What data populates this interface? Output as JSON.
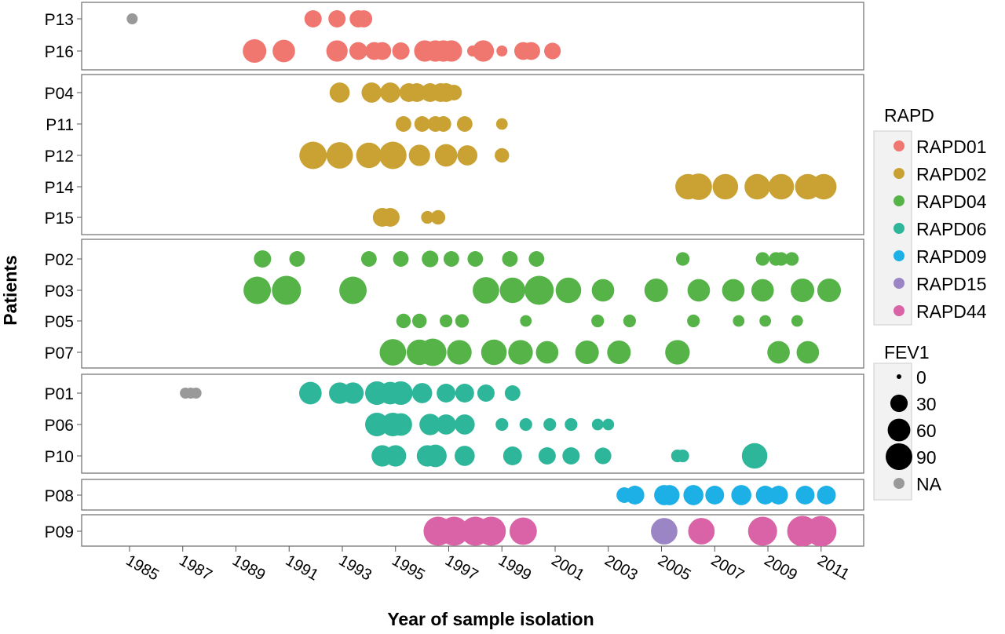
{
  "chart_data": {
    "type": "scatter",
    "xlabel": "Year of sample isolation",
    "ylabel": "Patients",
    "xlim": [
      1983.2,
      2012.6
    ],
    "x_ticks": [
      "1985",
      "1987",
      "1989",
      "1991",
      "1993",
      "1995",
      "1997",
      "1999",
      "2001",
      "2003",
      "2005",
      "2007",
      "2009",
      "2011"
    ],
    "grid": false,
    "panels": [
      {
        "name": "RAPD01",
        "rows": [
          "P13",
          "P16"
        ]
      },
      {
        "name": "RAPD02",
        "rows": [
          "P04",
          "P11",
          "P12",
          "P14",
          "P15"
        ]
      },
      {
        "name": "RAPD04",
        "rows": [
          "P02",
          "P03",
          "P05",
          "P07"
        ]
      },
      {
        "name": "RAPD06",
        "rows": [
          "P01",
          "P06",
          "P10"
        ]
      },
      {
        "name": "RAPD09",
        "rows": [
          "P08"
        ]
      },
      {
        "name": "RAPD44",
        "rows": [
          "P09"
        ]
      }
    ],
    "legend_color": {
      "title": "RAPD",
      "entries": [
        {
          "label": "RAPD01",
          "color": "#F07770"
        },
        {
          "label": "RAPD02",
          "color": "#C9A233"
        },
        {
          "label": "RAPD04",
          "color": "#55B348"
        },
        {
          "label": "RAPD06",
          "color": "#2DB69A"
        },
        {
          "label": "RAPD09",
          "color": "#1CB0E6"
        },
        {
          "label": "RAPD15",
          "color": "#9B85C4"
        },
        {
          "label": "RAPD44",
          "color": "#DA63A7"
        }
      ]
    },
    "legend_size": {
      "title": "FEV1",
      "entries": [
        {
          "label": "0",
          "value": 0
        },
        {
          "label": "30",
          "value": 30
        },
        {
          "label": "60",
          "value": 60
        },
        {
          "label": "90",
          "value": 90
        },
        {
          "label": "NA",
          "value": null
        }
      ]
    },
    "na_color": "#999999",
    "series": [
      {
        "patient": "P13",
        "color": "RAPD01",
        "points": [
          {
            "x": 1985.1,
            "fev1": null
          },
          {
            "x": 1991.9,
            "fev1": 20
          },
          {
            "x": 1992.8,
            "fev1": 20
          },
          {
            "x": 1993.6,
            "fev1": 20
          },
          {
            "x": 1993.8,
            "fev1": 20
          }
        ]
      },
      {
        "patient": "P16",
        "color": "RAPD01",
        "points": [
          {
            "x": 1989.7,
            "fev1": 45
          },
          {
            "x": 1990.8,
            "fev1": 40
          },
          {
            "x": 1992.8,
            "fev1": 35
          },
          {
            "x": 1993.6,
            "fev1": 22
          },
          {
            "x": 1994.2,
            "fev1": 22
          },
          {
            "x": 1994.5,
            "fev1": 22
          },
          {
            "x": 1995.2,
            "fev1": 20
          },
          {
            "x": 1996.1,
            "fev1": 35
          },
          {
            "x": 1996.5,
            "fev1": 35
          },
          {
            "x": 1996.8,
            "fev1": 35
          },
          {
            "x": 1997.1,
            "fev1": 35
          },
          {
            "x": 1997.9,
            "fev1": 5
          },
          {
            "x": 1998.3,
            "fev1": 35
          },
          {
            "x": 1999.0,
            "fev1": 5
          },
          {
            "x": 1999.8,
            "fev1": 22
          },
          {
            "x": 2000.1,
            "fev1": 22
          },
          {
            "x": 2000.9,
            "fev1": 18
          }
        ]
      },
      {
        "patient": "P04",
        "color": "RAPD02",
        "points": [
          {
            "x": 1992.9,
            "fev1": 30
          },
          {
            "x": 1994.1,
            "fev1": 30
          },
          {
            "x": 1994.8,
            "fev1": 30
          },
          {
            "x": 1995.5,
            "fev1": 25
          },
          {
            "x": 1995.8,
            "fev1": 25
          },
          {
            "x": 1996.3,
            "fev1": 25
          },
          {
            "x": 1996.7,
            "fev1": 25
          },
          {
            "x": 1996.9,
            "fev1": 25
          },
          {
            "x": 1997.2,
            "fev1": 15
          }
        ]
      },
      {
        "patient": "P11",
        "color": "RAPD02",
        "points": [
          {
            "x": 1995.3,
            "fev1": 15
          },
          {
            "x": 1996.0,
            "fev1": 15
          },
          {
            "x": 1996.5,
            "fev1": 15
          },
          {
            "x": 1996.8,
            "fev1": 15
          },
          {
            "x": 1997.6,
            "fev1": 15
          },
          {
            "x": 1999.0,
            "fev1": 6
          }
        ]
      },
      {
        "patient": "P12",
        "color": "RAPD02",
        "points": [
          {
            "x": 1991.9,
            "fev1": 65
          },
          {
            "x": 1992.9,
            "fev1": 60
          },
          {
            "x": 1994.0,
            "fev1": 55
          },
          {
            "x": 1994.9,
            "fev1": 65
          },
          {
            "x": 1995.9,
            "fev1": 35
          },
          {
            "x": 1996.9,
            "fev1": 40
          },
          {
            "x": 1997.7,
            "fev1": 30
          },
          {
            "x": 1999.0,
            "fev1": 12
          }
        ]
      },
      {
        "patient": "P14",
        "color": "RAPD02",
        "points": [
          {
            "x": 2006.0,
            "fev1": 55
          },
          {
            "x": 2006.4,
            "fev1": 60
          },
          {
            "x": 2007.4,
            "fev1": 55
          },
          {
            "x": 2008.6,
            "fev1": 55
          },
          {
            "x": 2009.5,
            "fev1": 55
          },
          {
            "x": 2010.5,
            "fev1": 55
          },
          {
            "x": 2011.1,
            "fev1": 55
          }
        ]
      },
      {
        "patient": "P15",
        "color": "RAPD02",
        "points": [
          {
            "x": 1994.5,
            "fev1": 25
          },
          {
            "x": 1994.8,
            "fev1": 25
          },
          {
            "x": 1996.2,
            "fev1": 8
          },
          {
            "x": 1996.6,
            "fev1": 12
          }
        ]
      },
      {
        "patient": "P02",
        "color": "RAPD04",
        "points": [
          {
            "x": 1990.0,
            "fev1": 20
          },
          {
            "x": 1991.3,
            "fev1": 15
          },
          {
            "x": 1994.0,
            "fev1": 15
          },
          {
            "x": 1995.2,
            "fev1": 15
          },
          {
            "x": 1996.3,
            "fev1": 18
          },
          {
            "x": 1997.1,
            "fev1": 15
          },
          {
            "x": 1998.0,
            "fev1": 15
          },
          {
            "x": 1999.3,
            "fev1": 15
          },
          {
            "x": 2000.3,
            "fev1": 15
          },
          {
            "x": 2005.8,
            "fev1": 10
          },
          {
            "x": 2008.8,
            "fev1": 10
          },
          {
            "x": 2009.3,
            "fev1": 10
          },
          {
            "x": 2009.5,
            "fev1": 10
          },
          {
            "x": 2009.9,
            "fev1": 10
          }
        ]
      },
      {
        "patient": "P03",
        "color": "RAPD04",
        "points": [
          {
            "x": 1989.8,
            "fev1": 65
          },
          {
            "x": 1990.9,
            "fev1": 75
          },
          {
            "x": 1993.4,
            "fev1": 65
          },
          {
            "x": 1998.4,
            "fev1": 60
          },
          {
            "x": 1999.4,
            "fev1": 55
          },
          {
            "x": 2000.4,
            "fev1": 75
          },
          {
            "x": 2001.5,
            "fev1": 55
          },
          {
            "x": 2002.8,
            "fev1": 40
          },
          {
            "x": 2004.8,
            "fev1": 45
          },
          {
            "x": 2006.4,
            "fev1": 40
          },
          {
            "x": 2007.7,
            "fev1": 40
          },
          {
            "x": 2008.8,
            "fev1": 40
          },
          {
            "x": 2010.3,
            "fev1": 45
          },
          {
            "x": 2011.3,
            "fev1": 45
          }
        ]
      },
      {
        "patient": "P05",
        "color": "RAPD04",
        "points": [
          {
            "x": 1995.3,
            "fev1": 12
          },
          {
            "x": 1995.9,
            "fev1": 12
          },
          {
            "x": 1996.9,
            "fev1": 8
          },
          {
            "x": 1997.5,
            "fev1": 10
          },
          {
            "x": 1999.9,
            "fev1": 6
          },
          {
            "x": 2002.6,
            "fev1": 8
          },
          {
            "x": 2003.8,
            "fev1": 8
          },
          {
            "x": 2006.2,
            "fev1": 8
          },
          {
            "x": 2007.9,
            "fev1": 6
          },
          {
            "x": 2008.9,
            "fev1": 6
          },
          {
            "x": 2010.1,
            "fev1": 6
          }
        ]
      },
      {
        "patient": "P07",
        "color": "RAPD04",
        "points": [
          {
            "x": 1994.9,
            "fev1": 60
          },
          {
            "x": 1995.9,
            "fev1": 55
          },
          {
            "x": 1996.4,
            "fev1": 65
          },
          {
            "x": 1997.4,
            "fev1": 50
          },
          {
            "x": 1998.7,
            "fev1": 55
          },
          {
            "x": 1999.7,
            "fev1": 50
          },
          {
            "x": 2000.7,
            "fev1": 40
          },
          {
            "x": 2002.2,
            "fev1": 45
          },
          {
            "x": 2003.4,
            "fev1": 45
          },
          {
            "x": 2005.6,
            "fev1": 50
          },
          {
            "x": 2009.4,
            "fev1": 40
          },
          {
            "x": 2010.5,
            "fev1": 40
          }
        ]
      },
      {
        "patient": "P01",
        "color": "RAPD06",
        "points": [
          {
            "x": 1987.1,
            "fev1": null
          },
          {
            "x": 1987.3,
            "fev1": null
          },
          {
            "x": 1987.5,
            "fev1": null
          },
          {
            "x": 1991.8,
            "fev1": 40
          },
          {
            "x": 1992.9,
            "fev1": 35
          },
          {
            "x": 1993.4,
            "fev1": 35
          },
          {
            "x": 1994.3,
            "fev1": 45
          },
          {
            "x": 1994.8,
            "fev1": 40
          },
          {
            "x": 1995.2,
            "fev1": 45
          },
          {
            "x": 1996.0,
            "fev1": 30
          },
          {
            "x": 1996.9,
            "fev1": 25
          },
          {
            "x": 1997.6,
            "fev1": 25
          },
          {
            "x": 1998.4,
            "fev1": 20
          },
          {
            "x": 1999.4,
            "fev1": 15
          }
        ]
      },
      {
        "patient": "P06",
        "color": "RAPD06",
        "points": [
          {
            "x": 1994.3,
            "fev1": 45
          },
          {
            "x": 1994.9,
            "fev1": 45
          },
          {
            "x": 1995.2,
            "fev1": 40
          },
          {
            "x": 1996.3,
            "fev1": 35
          },
          {
            "x": 1996.9,
            "fev1": 30
          },
          {
            "x": 1997.6,
            "fev1": 30
          },
          {
            "x": 1999.0,
            "fev1": 8
          },
          {
            "x": 1999.9,
            "fev1": 8
          },
          {
            "x": 2000.8,
            "fev1": 8
          },
          {
            "x": 2001.6,
            "fev1": 8
          },
          {
            "x": 2002.6,
            "fev1": 6
          },
          {
            "x": 2003.0,
            "fev1": 6
          }
        ]
      },
      {
        "patient": "P10",
        "color": "RAPD06",
        "points": [
          {
            "x": 1994.5,
            "fev1": 35
          },
          {
            "x": 1995.0,
            "fev1": 35
          },
          {
            "x": 1996.2,
            "fev1": 35
          },
          {
            "x": 1996.5,
            "fev1": 40
          },
          {
            "x": 1997.6,
            "fev1": 30
          },
          {
            "x": 1999.4,
            "fev1": 25
          },
          {
            "x": 2000.7,
            "fev1": 20
          },
          {
            "x": 2001.6,
            "fev1": 20
          },
          {
            "x": 2002.8,
            "fev1": 18
          },
          {
            "x": 2005.6,
            "fev1": 8
          },
          {
            "x": 2005.8,
            "fev1": 8
          },
          {
            "x": 2008.5,
            "fev1": 55
          }
        ]
      },
      {
        "patient": "P08",
        "color": "RAPD09",
        "points": [
          {
            "x": 2003.6,
            "fev1": 15
          },
          {
            "x": 2004.0,
            "fev1": 25
          },
          {
            "x": 2005.1,
            "fev1": 30
          },
          {
            "x": 2005.3,
            "fev1": 30
          },
          {
            "x": 2006.2,
            "fev1": 30
          },
          {
            "x": 2007.0,
            "fev1": 25
          },
          {
            "x": 2008.0,
            "fev1": 30
          },
          {
            "x": 2008.9,
            "fev1": 25
          },
          {
            "x": 2009.4,
            "fev1": 25
          },
          {
            "x": 2010.4,
            "fev1": 25
          },
          {
            "x": 2011.2,
            "fev1": 25
          }
        ]
      },
      {
        "patient": "P09",
        "color": "RAPD44",
        "points": [
          {
            "x": 1996.6,
            "fev1": 75
          },
          {
            "x": 1997.2,
            "fev1": 75
          },
          {
            "x": 1998.0,
            "fev1": 75
          },
          {
            "x": 1998.6,
            "fev1": 75
          },
          {
            "x": 1999.8,
            "fev1": 65
          },
          {
            "x": 2005.1,
            "fev1": 60,
            "color": "RAPD15"
          },
          {
            "x": 2006.5,
            "fev1": 60
          },
          {
            "x": 2008.8,
            "fev1": 75
          },
          {
            "x": 2010.3,
            "fev1": 85
          },
          {
            "x": 2011.0,
            "fev1": 85
          }
        ]
      }
    ]
  }
}
